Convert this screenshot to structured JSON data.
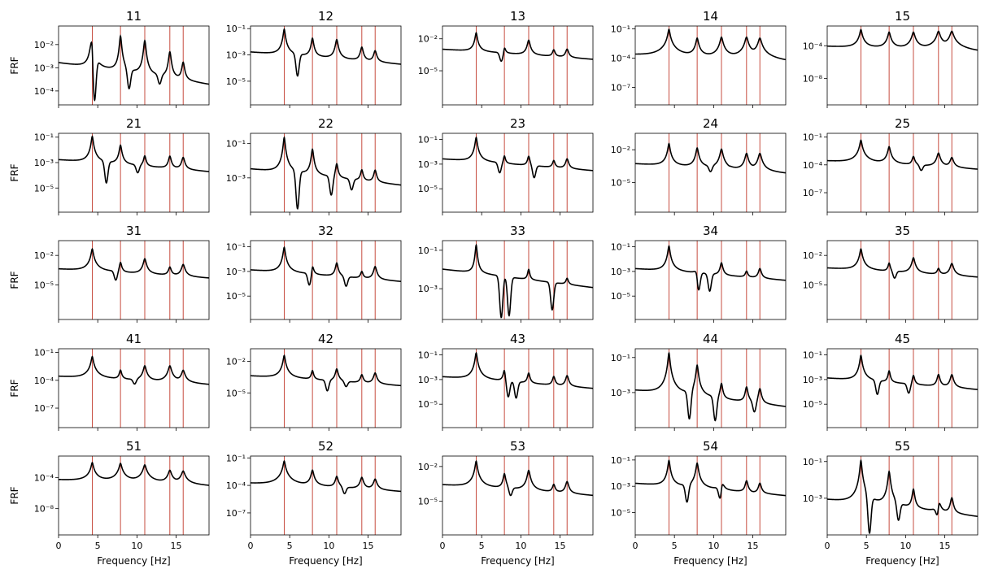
{
  "figure": {
    "x_label": "Frequency [Hz]",
    "y_label": "FRF",
    "line_color": "#000000",
    "mode_line_color": "#c0392b"
  },
  "chart_data": {
    "type": "line",
    "layout": "5x5 grid",
    "x_axis": {
      "label": "Frequency [Hz]",
      "range": [
        0,
        19.2
      ],
      "ticks": [
        0,
        5,
        10,
        15
      ],
      "tick_labels": [
        "0",
        "5",
        "10",
        "15"
      ]
    },
    "y_axis": {
      "label": "FRF",
      "scale": "log"
    },
    "mode_frequencies": [
      4.3,
      7.9,
      11.0,
      14.2,
      15.9
    ],
    "panels": [
      {
        "title": "11",
        "ylim_exp": [
          -4.6,
          -1.2
        ],
        "ticks": [
          -4,
          -3,
          -2
        ],
        "tick_labels": [
          "10⁻⁴",
          "10⁻³",
          "10⁻²"
        ],
        "base_exp": -3.0,
        "peaks": [
          -1.2,
          -1.6,
          -1.8,
          -2.3,
          -2.8
        ],
        "dips": [
          [
            4.6,
            -4.4
          ],
          [
            9.0,
            -3.9
          ],
          [
            12.9,
            -3.7
          ]
        ]
      },
      {
        "title": "12",
        "ylim_exp": [
          -6.8,
          -0.8
        ],
        "ticks": [
          -5,
          -3,
          -1
        ],
        "tick_labels": [
          "10⁻⁵",
          "10⁻³",
          "10⁻¹"
        ],
        "base_exp": -3.0,
        "peaks": [
          -1.0,
          -1.7,
          -1.8,
          -2.4,
          -2.7
        ],
        "dips": [
          [
            6.0,
            -4.6
          ]
        ]
      },
      {
        "title": "13",
        "ylim_exp": [
          -8.2,
          -0.8
        ],
        "ticks": [
          -5,
          -2
        ],
        "tick_labels": [
          "10⁻⁵",
          "10⁻²"
        ],
        "base_exp": -3.2,
        "peaks": [
          -1.4,
          -2.8,
          -2.1,
          -3.1,
          -3.0
        ],
        "dips": [
          [
            7.5,
            -4.1
          ]
        ]
      },
      {
        "title": "14",
        "ylim_exp": [
          -8.8,
          -0.7
        ],
        "ticks": [
          -7,
          -4,
          -1
        ],
        "tick_labels": [
          "10⁻⁷",
          "10⁻⁴",
          "10⁻¹"
        ],
        "base_exp": -3.9,
        "peaks": [
          -1.0,
          -1.9,
          -1.8,
          -1.8,
          -1.9
        ],
        "dips": [
          [
            9.7,
            -3.3
          ]
        ]
      },
      {
        "title": "15",
        "ylim_exp": [
          -11.2,
          -1.6
        ],
        "ticks": [
          -8,
          -4
        ],
        "tick_labels": [
          "10⁻⁸",
          "10⁻⁴"
        ],
        "base_exp": -4.3,
        "peaks": [
          -2.0,
          -2.3,
          -2.3,
          -2.2,
          -2.2
        ],
        "dips": []
      },
      {
        "title": "21",
        "ylim_exp": [
          -6.9,
          -0.7
        ],
        "ticks": [
          -5,
          -3,
          -1
        ],
        "tick_labels": [
          "10⁻⁵",
          "10⁻³",
          "10⁻¹"
        ],
        "base_exp": -3.0,
        "peaks": [
          -0.9,
          -1.6,
          -2.5,
          -2.5,
          -2.6
        ],
        "dips": [
          [
            6.1,
            -4.6
          ],
          [
            10.1,
            -3.8
          ]
        ]
      },
      {
        "title": "22",
        "ylim_exp": [
          -5.0,
          -0.4
        ],
        "ticks": [
          -3,
          -1
        ],
        "tick_labels": [
          "10⁻³",
          "10⁻¹"
        ],
        "base_exp": -2.7,
        "peaks": [
          -0.6,
          -1.3,
          -2.2,
          -2.6,
          -2.6
        ],
        "dips": [
          [
            6.0,
            -4.8
          ],
          [
            10.3,
            -4.0
          ],
          [
            12.9,
            -3.7
          ]
        ]
      },
      {
        "title": "23",
        "ylim_exp": [
          -6.9,
          -0.5
        ],
        "ticks": [
          -5,
          -3,
          -1
        ],
        "tick_labels": [
          "10⁻⁵",
          "10⁻³",
          "10⁻¹"
        ],
        "base_exp": -2.8,
        "peaks": [
          -0.8,
          -2.4,
          -2.4,
          -2.8,
          -2.6
        ],
        "dips": [
          [
            7.3,
            -3.7
          ],
          [
            11.7,
            -4.1
          ]
        ]
      },
      {
        "title": "24",
        "ylim_exp": [
          -7.7,
          -0.5
        ],
        "ticks": [
          -5,
          -2
        ],
        "tick_labels": [
          "10⁻⁵",
          "10⁻²"
        ],
        "base_exp": -3.5,
        "peaks": [
          -1.4,
          -1.8,
          -1.9,
          -2.3,
          -2.3
        ],
        "dips": [
          [
            9.6,
            -4.0
          ],
          [
            12.2,
            -3.5
          ]
        ]
      },
      {
        "title": "25",
        "ylim_exp": [
          -9.1,
          -0.6
        ],
        "ticks": [
          -7,
          -4,
          -1
        ],
        "tick_labels": [
          "10⁻⁷",
          "10⁻⁴",
          "10⁻¹"
        ],
        "base_exp": -3.8,
        "peaks": [
          -1.3,
          -2.0,
          -3.1,
          -2.7,
          -3.2
        ],
        "dips": [
          [
            12.0,
            -4.6
          ]
        ]
      },
      {
        "title": "31",
        "ylim_exp": [
          -8.5,
          -0.5
        ],
        "ticks": [
          -5,
          -2
        ],
        "tick_labels": [
          "10⁻⁵",
          "10⁻²"
        ],
        "base_exp": -3.6,
        "peaks": [
          -1.3,
          -2.7,
          -2.3,
          -3.2,
          -2.9
        ],
        "dips": [
          [
            7.3,
            -4.5
          ]
        ]
      },
      {
        "title": "32",
        "ylim_exp": [
          -6.9,
          -0.5
        ],
        "ticks": [
          -5,
          -3,
          -1
        ],
        "tick_labels": [
          "10⁻⁵",
          "10⁻³",
          "10⁻¹"
        ],
        "base_exp": -3.1,
        "peaks": [
          -1.0,
          -2.5,
          -2.3,
          -3.1,
          -2.6
        ],
        "dips": [
          [
            7.5,
            -4.1
          ],
          [
            12.2,
            -4.2
          ]
        ]
      },
      {
        "title": "33",
        "ylim_exp": [
          -4.6,
          -0.5
        ],
        "ticks": [
          -3,
          -1
        ],
        "tick_labels": [
          "10⁻³",
          "10⁻¹"
        ],
        "base_exp": -2.2,
        "peaks": [
          -0.7,
          -3.2,
          -2.1,
          -4.0,
          -2.7
        ],
        "dips": [
          [
            7.5,
            -4.5
          ],
          [
            8.5,
            -4.4
          ],
          [
            14.0,
            -4.1
          ]
        ]
      },
      {
        "title": "34",
        "ylim_exp": [
          -6.9,
          -0.5
        ],
        "ticks": [
          -5,
          -3,
          -1
        ],
        "tick_labels": [
          "10⁻⁵",
          "10⁻³",
          "10⁻¹"
        ],
        "base_exp": -3.0,
        "peaks": [
          -0.9,
          -2.5,
          -2.3,
          -3.1,
          -2.8
        ],
        "dips": [
          [
            8.1,
            -4.5
          ],
          [
            9.5,
            -4.6
          ]
        ]
      },
      {
        "title": "35",
        "ylim_exp": [
          -8.5,
          -0.5
        ],
        "ticks": [
          -5,
          -2
        ],
        "tick_labels": [
          "10⁻⁵",
          "10⁻²"
        ],
        "base_exp": -3.5,
        "peaks": [
          -1.3,
          -2.8,
          -2.2,
          -3.4,
          -2.8
        ],
        "dips": [
          [
            8.6,
            -4.3
          ]
        ]
      },
      {
        "title": "41",
        "ylim_exp": [
          -9.1,
          -0.6
        ],
        "ticks": [
          -7,
          -4,
          -1
        ],
        "tick_labels": [
          "10⁻⁷",
          "10⁻⁴",
          "10⁻¹"
        ],
        "base_exp": -3.8,
        "peaks": [
          -1.4,
          -2.9,
          -2.4,
          -2.4,
          -2.9
        ],
        "dips": [
          [
            9.7,
            -4.4
          ]
        ]
      },
      {
        "title": "42",
        "ylim_exp": [
          -8.3,
          -0.8
        ],
        "ticks": [
          -5,
          -2
        ],
        "tick_labels": [
          "10⁻⁵",
          "10⁻²"
        ],
        "base_exp": -3.6,
        "peaks": [
          -1.4,
          -2.9,
          -2.7,
          -3.3,
          -3.1
        ],
        "dips": [
          [
            9.8,
            -4.8
          ],
          [
            12.2,
            -4.4
          ]
        ]
      },
      {
        "title": "43",
        "ylim_exp": [
          -6.9,
          -0.5
        ],
        "ticks": [
          -5,
          -3,
          -1
        ],
        "tick_labels": [
          "10⁻⁵",
          "10⁻³",
          "10⁻¹"
        ],
        "base_exp": -3.0,
        "peaks": [
          -0.8,
          -2.2,
          -2.5,
          -2.8,
          -2.7
        ],
        "dips": [
          [
            8.4,
            -4.4
          ],
          [
            9.4,
            -4.5
          ]
        ]
      },
      {
        "title": "44",
        "ylim_exp": [
          -5.0,
          -0.5
        ],
        "ticks": [
          -3,
          -1
        ],
        "tick_labels": [
          "10⁻³",
          "10⁻¹"
        ],
        "base_exp": -3.1,
        "peaks": [
          -0.7,
          -1.4,
          -2.5,
          -2.7,
          -2.8
        ],
        "dips": [
          [
            6.9,
            -4.5
          ],
          [
            10.2,
            -4.6
          ],
          [
            15.2,
            -4.1
          ]
        ]
      },
      {
        "title": "45",
        "ylim_exp": [
          -6.9,
          -0.5
        ],
        "ticks": [
          -5,
          -3,
          -1
        ],
        "tick_labels": [
          "10⁻⁵",
          "10⁻³",
          "10⁻¹"
        ],
        "base_exp": -3.1,
        "peaks": [
          -1.0,
          -2.3,
          -2.7,
          -2.6,
          -2.6
        ],
        "dips": [
          [
            6.4,
            -4.2
          ],
          [
            10.4,
            -4.1
          ]
        ]
      },
      {
        "title": "51",
        "ylim_exp": [
          -11.4,
          -1.2
        ],
        "ticks": [
          -8,
          -4
        ],
        "tick_labels": [
          "10⁻⁸",
          "10⁻⁴"
        ],
        "base_exp": -4.5,
        "peaks": [
          -2.0,
          -2.1,
          -2.3,
          -3.0,
          -3.1
        ],
        "dips": []
      },
      {
        "title": "52",
        "ylim_exp": [
          -9.4,
          -0.8
        ],
        "ticks": [
          -7,
          -4,
          -1
        ],
        "tick_labels": [
          "10⁻⁷",
          "10⁻⁴",
          "10⁻¹"
        ],
        "base_exp": -4.0,
        "peaks": [
          -1.3,
          -2.3,
          -3.0,
          -3.1,
          -3.3
        ],
        "dips": [
          [
            12.0,
            -4.9
          ]
        ]
      },
      {
        "title": "53",
        "ylim_exp": [
          -7.9,
          -1.1
        ],
        "ticks": [
          -5,
          -2
        ],
        "tick_labels": [
          "10⁻⁵",
          "10⁻²"
        ],
        "base_exp": -3.8,
        "peaks": [
          -1.5,
          -2.6,
          -2.3,
          -3.6,
          -3.3
        ],
        "dips": [
          [
            8.7,
            -4.5
          ]
        ]
      },
      {
        "title": "54",
        "ylim_exp": [
          -6.7,
          -0.7
        ],
        "ticks": [
          -5,
          -3,
          -1
        ],
        "tick_labels": [
          "10⁻⁵",
          "10⁻³",
          "10⁻¹"
        ],
        "base_exp": -3.0,
        "peaks": [
          -1.0,
          -1.2,
          -2.3,
          -2.6,
          -2.8
        ],
        "dips": [
          [
            6.6,
            -4.2
          ],
          [
            10.8,
            -3.9
          ],
          [
            15.1,
            -3.4
          ]
        ]
      },
      {
        "title": "55",
        "ylim_exp": [
          -5.0,
          -0.7
        ],
        "ticks": [
          -3,
          -1
        ],
        "tick_labels": [
          "10⁻³",
          "10⁻¹"
        ],
        "base_exp": -3.3,
        "peaks": [
          -0.9,
          -1.5,
          -2.5,
          -2.9,
          -3.0
        ],
        "dips": [
          [
            5.4,
            -4.9
          ],
          [
            9.1,
            -4.2
          ],
          [
            14.0,
            -3.9
          ]
        ]
      }
    ]
  }
}
